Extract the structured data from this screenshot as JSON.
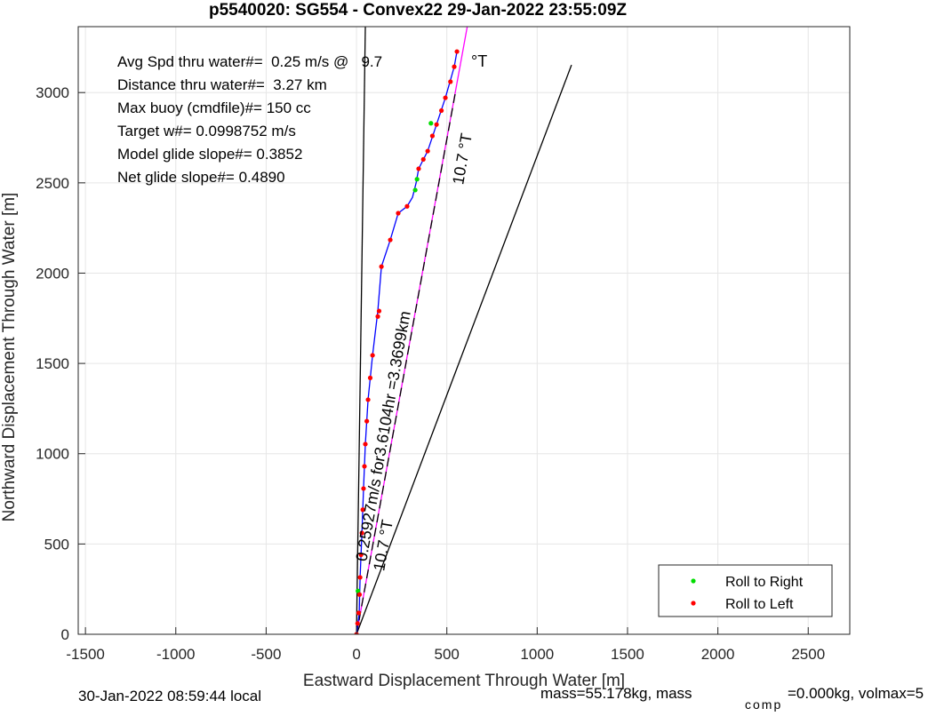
{
  "chart_data": {
    "type": "scatter",
    "title": "p5540020: SG554 - Convex22 29-Jan-2022 23:55:09Z",
    "x_label": "Eastward Displacement Through Water [m]",
    "y_label": "Northward Displacement Through Water [m]",
    "xlim": [
      -1540,
      2730
    ],
    "ylim": [
      0,
      3365
    ],
    "xticks": [
      -1500,
      -1000,
      -500,
      0,
      500,
      1000,
      1500,
      2000,
      2500
    ],
    "yticks": [
      0,
      500,
      1000,
      1500,
      2000,
      2500,
      3000
    ],
    "grid": true,
    "legend_position": "lower right",
    "track": {
      "color": "#0000ff",
      "x": [
        0,
        15,
        20,
        30,
        39,
        49,
        64,
        89,
        118,
        138,
        187,
        231,
        280,
        310,
        330,
        344,
        394,
        443,
        492,
        541,
        556
      ],
      "y": [
        0,
        118,
        315,
        561,
        807,
        1053,
        1299,
        1545,
        1790,
        2036,
        2184,
        2332,
        2370,
        2420,
        2500,
        2578,
        2676,
        2823,
        2971,
        3143,
        3227
      ]
    },
    "lines": [
      {
        "color": "#000000",
        "dashed": false,
        "x": [
          0,
          49
        ],
        "y": [
          0,
          3365
        ]
      },
      {
        "color": "#ff00ff",
        "dashed": false,
        "x": [
          0,
          613
        ],
        "y": [
          0,
          3365
        ]
      },
      {
        "color": "#000000",
        "dashed": true,
        "x": [
          0,
          551
        ],
        "y": [
          0,
          3020
        ]
      },
      {
        "color": "#000000",
        "dashed": false,
        "x": [
          0,
          1190
        ],
        "y": [
          0,
          3153
        ]
      }
    ],
    "series": [
      {
        "name": "Roll to Right",
        "color": "#00dd00",
        "x": [
          8,
          325,
          335,
          412
        ],
        "y": [
          240,
          2460,
          2520,
          2830
        ]
      },
      {
        "name": "Roll to Left",
        "color": "#ff0000",
        "x": [
          0,
          6,
          12,
          17,
          20,
          25,
          30,
          35,
          39,
          44,
          49,
          57,
          64,
          76,
          89,
          118,
          125,
          138,
          187,
          231,
          280,
          344,
          370,
          394,
          420,
          443,
          470,
          492,
          520,
          541,
          556
        ],
        "y": [
          0,
          60,
          118,
          220,
          315,
          440,
          561,
          690,
          807,
          930,
          1053,
          1180,
          1299,
          1420,
          1545,
          1760,
          1790,
          2036,
          2184,
          2332,
          2370,
          2578,
          2630,
          2676,
          2760,
          2823,
          2900,
          2971,
          3060,
          3143,
          3227
        ]
      }
    ],
    "info_lines": [
      "Avg Spd thru water#=  0.25 m/s @   9.7",
      "Distance thru water#=  3.27 km",
      "Max buoy (cmdfile)#= 150 cc",
      "Target w#= 0.0998752 m/s",
      "Model glide slope#= 0.3852",
      "Net glide slope#= 0.4890"
    ],
    "annotations": [
      "°T",
      "10.7 °T",
      "0.25927m/s for3.6104hr =3.3699km",
      "10.7 °T"
    ],
    "footer": {
      "left": "30-Jan-2022 08:59:44 local",
      "mass": "mass=55.178kg, mass",
      "subscript": "comp",
      "rest": "=0.000kg, volmax=5"
    }
  }
}
